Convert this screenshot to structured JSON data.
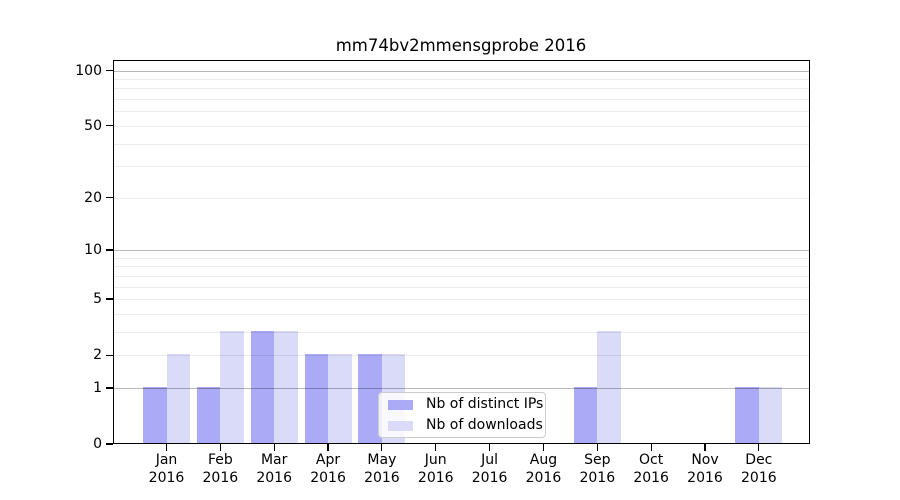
{
  "page": {
    "background": "#ffffff"
  },
  "chart_data": {
    "type": "bar",
    "title": "mm74bv2mmensgprobe 2016",
    "categories": [
      {
        "month": "Jan",
        "year": "2016"
      },
      {
        "month": "Feb",
        "year": "2016"
      },
      {
        "month": "Mar",
        "year": "2016"
      },
      {
        "month": "Apr",
        "year": "2016"
      },
      {
        "month": "May",
        "year": "2016"
      },
      {
        "month": "Jun",
        "year": "2016"
      },
      {
        "month": "Jul",
        "year": "2016"
      },
      {
        "month": "Aug",
        "year": "2016"
      },
      {
        "month": "Sep",
        "year": "2016"
      },
      {
        "month": "Oct",
        "year": "2016"
      },
      {
        "month": "Nov",
        "year": "2016"
      },
      {
        "month": "Dec",
        "year": "2016"
      }
    ],
    "series": [
      {
        "name": "Nb of distinct IPs",
        "key": "distinct-ips",
        "color": "#aaaaf6",
        "values": [
          1,
          1,
          3,
          2,
          2,
          0,
          0,
          0,
          1,
          0,
          0,
          1
        ]
      },
      {
        "name": "Nb of downloads",
        "key": "downloads",
        "color": "#dadaf9",
        "values": [
          2,
          3,
          3,
          2,
          2,
          0,
          0,
          0,
          3,
          0,
          0,
          1
        ]
      }
    ],
    "xlabel": "",
    "ylabel": "",
    "y_axis": {
      "scale": "log1p",
      "range": [
        0,
        114
      ],
      "tick_labels": [
        0,
        1,
        2,
        5,
        10,
        20,
        50,
        100
      ],
      "major_gridlines": [
        1,
        10,
        100
      ],
      "minor_gridlines": [
        2,
        3,
        4,
        5,
        6,
        7,
        8,
        9,
        20,
        30,
        40,
        50,
        60,
        70,
        80,
        90
      ]
    },
    "grid": true,
    "legend_position": "inside-bottom-center"
  },
  "colors": {
    "bar_distinct_ips": "#aaaaf6",
    "bar_downloads": "#dadaf9",
    "axis": "#000000",
    "major_grid": "rgba(0,0,0,0.28)",
    "minor_grid": "rgba(0,0,0,0.08)",
    "legend_border": "#cccccc",
    "legend_background": "rgba(255,255,255,0.8)"
  }
}
